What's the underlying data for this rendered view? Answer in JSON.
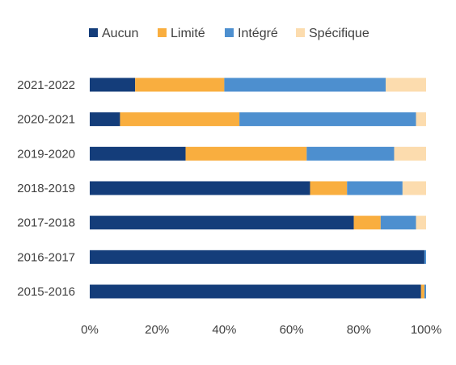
{
  "chart_data": {
    "type": "bar",
    "orientation": "horizontal",
    "stacked": true,
    "percent_stacked": true,
    "categories": [
      "2015-2016",
      "2016-2017",
      "2017-2018",
      "2018-2019",
      "2019-2020",
      "2020-2021",
      "2021-2022"
    ],
    "series": [
      {
        "name": "Aucun",
        "color": "#143D7A",
        "values": [
          98.5,
          99.5,
          78.5,
          65.5,
          28.5,
          9,
          13.5
        ]
      },
      {
        "name": "Limité",
        "color": "#F9AE3F",
        "values": [
          1,
          0,
          8,
          11,
          36,
          35.5,
          26.5
        ]
      },
      {
        "name": "Intégré",
        "color": "#4D8FCF",
        "values": [
          0.5,
          0.5,
          10.5,
          16.5,
          26,
          52.5,
          48
        ]
      },
      {
        "name": "Spécifique",
        "color": "#FCDCAE",
        "values": [
          0,
          0,
          3,
          7,
          9.5,
          3,
          12
        ]
      }
    ],
    "xlim": [
      0,
      100
    ],
    "xticks": [
      "0%",
      "20%",
      "40%",
      "60%",
      "80%",
      "100%"
    ],
    "legend_position": "top",
    "grid": false,
    "title": "",
    "xlabel": "",
    "ylabel": ""
  }
}
